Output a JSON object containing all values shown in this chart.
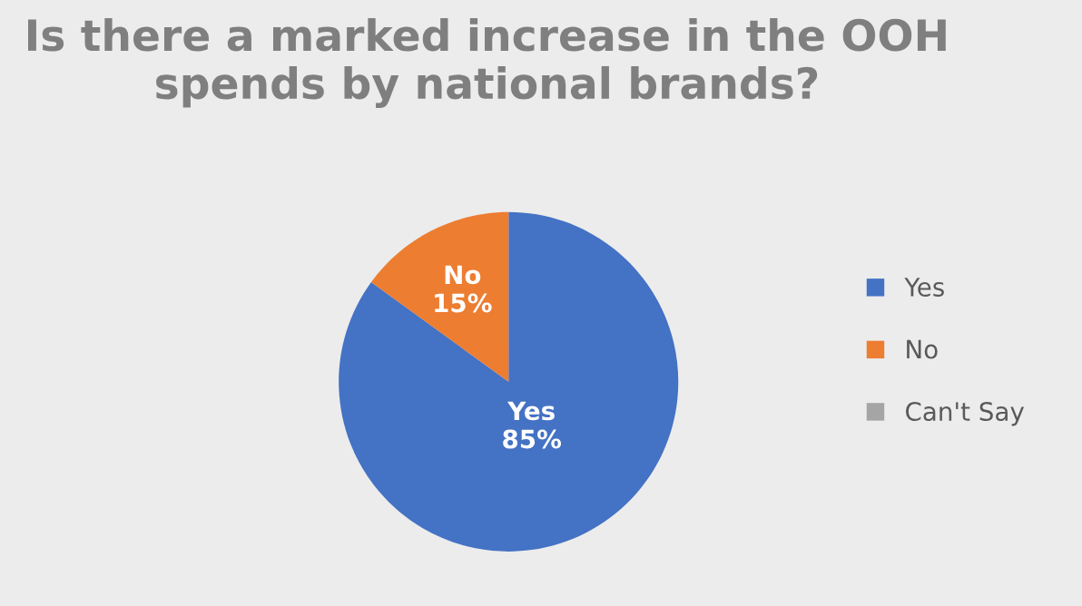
{
  "chart_data": {
    "type": "pie",
    "title": "Is there a marked increase in the OOH spends by national brands?",
    "categories": [
      "Yes",
      "No",
      "Can't Say"
    ],
    "values": [
      85,
      15,
      0
    ],
    "colors": [
      "#4472c4",
      "#ed7d31",
      "#a5a5a5"
    ],
    "value_labels": [
      "85%",
      "15%",
      null
    ],
    "legend": "right"
  }
}
